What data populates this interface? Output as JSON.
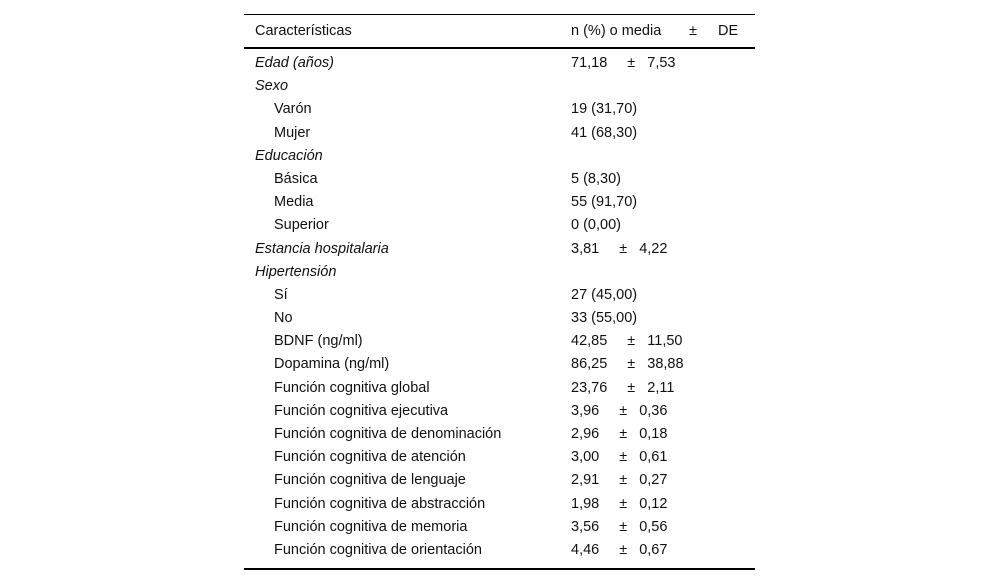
{
  "header": {
    "characteristic": "Características",
    "value": "n (%) o media",
    "pm": "±",
    "sd": "DE"
  },
  "rows": [
    {
      "label": "Edad (años)",
      "style": "category",
      "mean": "71,18",
      "pm": "±",
      "sd": "7,53"
    },
    {
      "label": "Sexo",
      "style": "category"
    },
    {
      "label": "Varón",
      "style": "sub",
      "value": "19 (31,70)"
    },
    {
      "label": "Mujer",
      "style": "sub",
      "value": "41 (68,30)"
    },
    {
      "label": "Educación",
      "style": "category"
    },
    {
      "label": "Básica",
      "style": "sub",
      "value": "5 (8,30)"
    },
    {
      "label": "Media",
      "style": "sub",
      "value": "55 (91,70)"
    },
    {
      "label": "Superior",
      "style": "sub",
      "value": "0 (0,00)"
    },
    {
      "label": "Estancia hospitalaria",
      "style": "category",
      "mean": "3,81",
      "pm": "±",
      "sd": "4,22"
    },
    {
      "label": "Hipertensión",
      "style": "category"
    },
    {
      "label": "Sí",
      "style": "sub",
      "value": "27 (45,00)"
    },
    {
      "label": "No",
      "style": "sub",
      "value": "33 (55,00)"
    },
    {
      "label": "BDNF (ng/ml)",
      "style": "sub",
      "mean": "42,85",
      "pm": "±",
      "sd": "11,50"
    },
    {
      "label": "Dopamina (ng/ml)",
      "style": "sub",
      "mean": "86,25",
      "pm": "±",
      "sd": "38,88"
    },
    {
      "label": "Función cognitiva global",
      "style": "sub",
      "mean": "23,76",
      "pm": "±",
      "sd": "2,11"
    },
    {
      "label": "Función cognitiva ejecutiva",
      "style": "sub",
      "mean": "3,96",
      "pm": "±",
      "sd": "0,36"
    },
    {
      "label": "Función cognitiva de denominación",
      "style": "sub",
      "mean": "2,96",
      "pm": "±",
      "sd": "0,18"
    },
    {
      "label": "Función cognitiva de atención",
      "style": "sub",
      "mean": "3,00",
      "pm": "±",
      "sd": "0,61"
    },
    {
      "label": "Función cognitiva de lenguaje",
      "style": "sub",
      "mean": "2,91",
      "pm": "±",
      "sd": "0,27"
    },
    {
      "label": "Función cognitiva de abstracción",
      "style": "sub",
      "mean": "1,98",
      "pm": "±",
      "sd": "0,12"
    },
    {
      "label": "Función cognitiva de memoria",
      "style": "sub",
      "mean": "3,56",
      "pm": "±",
      "sd": "0,56"
    },
    {
      "label": "Función cognitiva de orientación",
      "style": "sub",
      "mean": "4,46",
      "pm": "±",
      "sd": "0,67"
    }
  ]
}
